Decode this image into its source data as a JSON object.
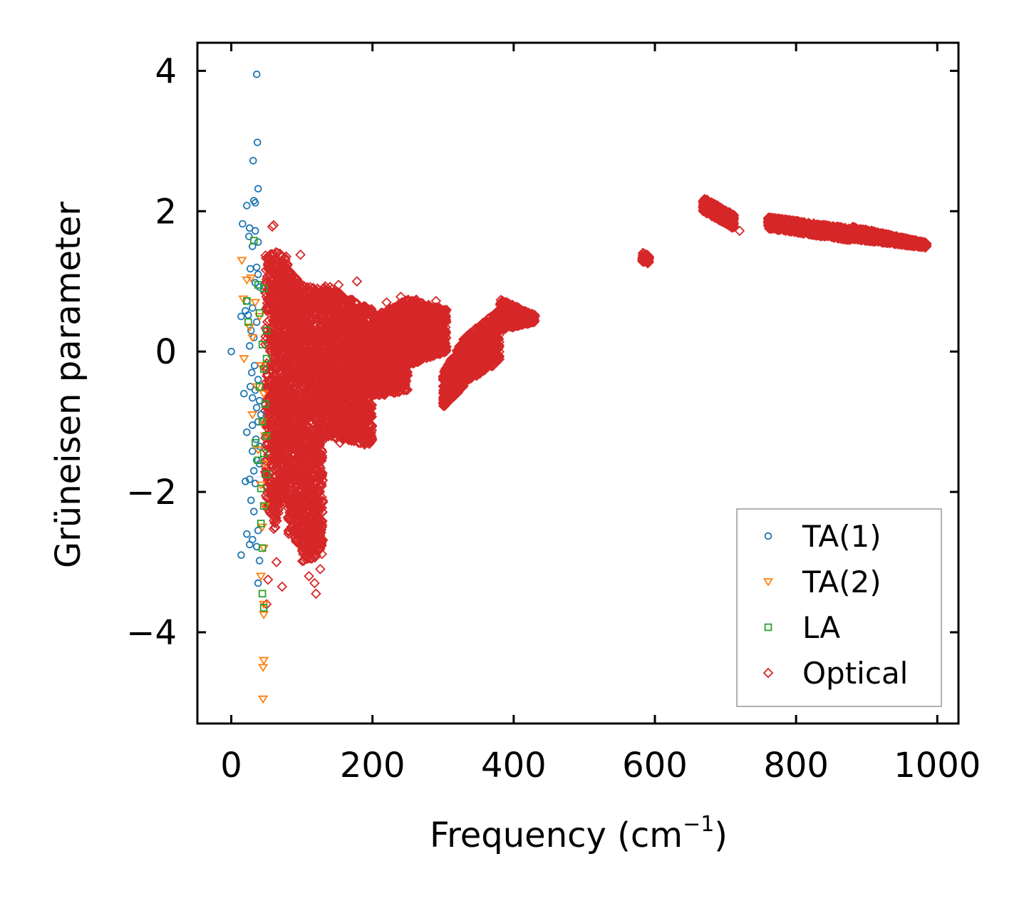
{
  "chart_data": {
    "type": "scatter",
    "title": "",
    "xlabel": "Frequency (cm",
    "xlabel_sup": "−1",
    "xlabel_suffix": ")",
    "ylabel": "Grüneisen parameter",
    "xlim": [
      -48,
      1030
    ],
    "ylim": [
      -5.3,
      4.4
    ],
    "grid": false,
    "legend_position": "lower-right",
    "x_ticks": [
      0,
      200,
      400,
      600,
      800,
      1000
    ],
    "x_tick_labels": [
      "0",
      "200",
      "400",
      "600",
      "800",
      "1000"
    ],
    "y_ticks": [
      -4,
      -2,
      0,
      2,
      4
    ],
    "y_tick_labels": [
      "−4",
      "−2",
      "0",
      "2",
      "4"
    ],
    "series": [
      {
        "name": "TA(1)",
        "color": "#1f77b4",
        "marker": "circle",
        "points": [
          [
            36,
            3.95
          ],
          [
            37,
            2.98
          ],
          [
            31,
            2.72
          ],
          [
            38,
            2.32
          ],
          [
            32,
            2.15
          ],
          [
            34,
            2.12
          ],
          [
            22,
            2.08
          ],
          [
            16,
            1.82
          ],
          [
            26,
            1.76
          ],
          [
            34,
            1.72
          ],
          [
            25,
            1.64
          ],
          [
            38,
            1.56
          ],
          [
            30,
            1.5
          ],
          [
            36,
            1.2
          ],
          [
            27,
            1.18
          ],
          [
            38,
            1.1
          ],
          [
            34,
            0.98
          ],
          [
            40,
            0.92
          ],
          [
            22,
            0.72
          ],
          [
            30,
            0.62
          ],
          [
            20,
            0.58
          ],
          [
            14,
            0.5
          ],
          [
            24,
            0.52
          ],
          [
            36,
            0.42
          ],
          [
            28,
            0.3
          ],
          [
            32,
            0.2
          ],
          [
            26,
            0.08
          ],
          [
            0,
            0.0
          ],
          [
            33,
            -0.2
          ],
          [
            29,
            -0.3
          ],
          [
            38,
            -0.4
          ],
          [
            27,
            -0.5
          ],
          [
            34,
            -0.55
          ],
          [
            18,
            -0.6
          ],
          [
            30,
            -0.66
          ],
          [
            40,
            -0.7
          ],
          [
            36,
            -0.8
          ],
          [
            42,
            -0.9
          ],
          [
            38,
            -1.0
          ],
          [
            30,
            -1.05
          ],
          [
            22,
            -1.15
          ],
          [
            35,
            -1.25
          ],
          [
            40,
            -1.35
          ],
          [
            30,
            -1.42
          ],
          [
            36,
            -1.55
          ],
          [
            40,
            -1.6
          ],
          [
            32,
            -1.7
          ],
          [
            26,
            -1.82
          ],
          [
            20,
            -1.85
          ],
          [
            34,
            -1.88
          ],
          [
            28,
            -2.12
          ],
          [
            32,
            -2.28
          ],
          [
            38,
            -2.55
          ],
          [
            22,
            -2.6
          ],
          [
            30,
            -2.68
          ],
          [
            26,
            -2.75
          ],
          [
            36,
            -2.78
          ],
          [
            14,
            -2.9
          ],
          [
            40,
            -2.98
          ],
          [
            38,
            -3.3
          ]
        ]
      },
      {
        "name": "TA(2)",
        "color": "#ff7f0e",
        "marker": "triangle-down",
        "points": [
          [
            15,
            1.3
          ],
          [
            28,
            1.05
          ],
          [
            22,
            1.02
          ],
          [
            17,
            0.75
          ],
          [
            34,
            0.7
          ],
          [
            40,
            0.5
          ],
          [
            26,
            0.35
          ],
          [
            30,
            0.2
          ],
          [
            18,
            -0.1
          ],
          [
            42,
            -0.2
          ],
          [
            36,
            -0.5
          ],
          [
            46,
            -0.6
          ],
          [
            30,
            -0.9
          ],
          [
            44,
            -1.0
          ],
          [
            48,
            -1.2
          ],
          [
            38,
            -1.4
          ],
          [
            46,
            -1.6
          ],
          [
            42,
            -1.9
          ],
          [
            48,
            -2.2
          ],
          [
            44,
            -2.5
          ],
          [
            46,
            -2.8
          ],
          [
            42,
            -3.2
          ],
          [
            46,
            -3.6
          ],
          [
            46,
            -3.75
          ],
          [
            46,
            -4.4
          ],
          [
            45,
            -4.5
          ],
          [
            45,
            -4.95
          ]
        ]
      },
      {
        "name": "LA",
        "color": "#2ca02c",
        "marker": "square",
        "points": [
          [
            32,
            1.58
          ],
          [
            38,
            0.95
          ],
          [
            46,
            0.9
          ],
          [
            22,
            0.72
          ],
          [
            40,
            0.55
          ],
          [
            24,
            0.42
          ],
          [
            50,
            0.3
          ],
          [
            44,
            0.1
          ],
          [
            50,
            -0.1
          ],
          [
            46,
            -0.25
          ],
          [
            40,
            -0.5
          ],
          [
            48,
            -0.75
          ],
          [
            44,
            -1.0
          ],
          [
            50,
            -1.2
          ],
          [
            34,
            -1.3
          ],
          [
            46,
            -1.45
          ],
          [
            38,
            -1.55
          ],
          [
            50,
            -1.75
          ],
          [
            42,
            -1.95
          ],
          [
            46,
            -2.2
          ],
          [
            42,
            -2.45
          ],
          [
            44,
            -2.8
          ],
          [
            44,
            -3.45
          ],
          [
            46,
            -3.65
          ]
        ]
      },
      {
        "name": "Optical",
        "color": "#d62728",
        "marker": "diamond",
        "clusters": [
          {
            "x": [
              48,
              60
            ],
            "y_top": [
              1.4,
              1.4
            ],
            "y_bot": [
              -2.2,
              -2.4
            ],
            "n": 260
          },
          {
            "x": [
              60,
              80
            ],
            "y_top": [
              1.45,
              1.35
            ],
            "y_bot": [
              -2.6,
              -1.8
            ],
            "n": 700
          },
          {
            "x": [
              80,
              100
            ],
            "y_top": [
              1.2,
              0.95
            ],
            "y_bot": [
              -2.6,
              -2.8
            ],
            "n": 700
          },
          {
            "x": [
              100,
              130
            ],
            "y_top": [
              0.95,
              0.88
            ],
            "y_bot": [
              -3.0,
              -2.9
            ],
            "n": 950
          },
          {
            "x": [
              130,
              200
            ],
            "y_top": [
              0.95,
              0.6
            ],
            "y_bot": [
              -1.2,
              -1.35
            ],
            "n": 1700
          },
          {
            "x": [
              200,
              250
            ],
            "y_top": [
              0.5,
              0.75
            ],
            "y_bot": [
              -0.65,
              -0.55
            ],
            "n": 1000
          },
          {
            "x": [
              250,
              305
            ],
            "y_top": [
              0.75,
              0.6
            ],
            "y_bot": [
              -0.2,
              0.0
            ],
            "n": 800
          },
          {
            "x": [
              300,
              330
            ],
            "y_top": [
              -0.3,
              0.2
            ],
            "y_bot": [
              -0.8,
              -0.5
            ],
            "n": 400
          },
          {
            "x": [
              330,
              380
            ],
            "y_top": [
              0.2,
              0.6
            ],
            "y_bot": [
              -0.45,
              -0.15
            ],
            "n": 600
          },
          {
            "x": [
              380,
              430
            ],
            "y_top": [
              0.75,
              0.52
            ],
            "y_bot": [
              0.3,
              0.42
            ],
            "n": 500
          },
          {
            "x": [
              582,
              592
            ],
            "y_top": [
              1.42,
              1.36
            ],
            "y_bot": [
              1.28,
              1.25
            ],
            "n": 90
          },
          {
            "x": [
              668,
              712
            ],
            "y_top": [
              2.2,
              1.95
            ],
            "y_bot": [
              2.0,
              1.75
            ],
            "n": 500
          },
          {
            "x": [
              760,
              880
            ],
            "y_top": [
              1.92,
              1.75
            ],
            "y_bot": [
              1.75,
              1.58
            ],
            "n": 900
          },
          {
            "x": [
              880,
              985
            ],
            "y_top": [
              1.78,
              1.55
            ],
            "y_bot": [
              1.6,
              1.48
            ],
            "n": 700
          }
        ],
        "outliers": [
          [
            60,
            1.8
          ],
          [
            58,
            1.78
          ],
          [
            98,
            1.38
          ],
          [
            72,
            1.35
          ],
          [
            178,
            1.0
          ],
          [
            152,
            0.95
          ],
          [
            140,
            0.92
          ],
          [
            118,
            0.85
          ],
          [
            220,
            0.7
          ],
          [
            240,
            0.78
          ],
          [
            262,
            0.74
          ],
          [
            290,
            0.72
          ],
          [
            335,
            0.18
          ],
          [
            345,
            -0.1
          ],
          [
            306,
            -0.35
          ],
          [
            160,
            -1.0
          ],
          [
            172,
            -0.88
          ],
          [
            185,
            -1.05
          ],
          [
            96,
            -2.2
          ],
          [
            85,
            -2.5
          ],
          [
            110,
            -3.2
          ],
          [
            118,
            -3.3
          ],
          [
            120,
            -3.45
          ],
          [
            126,
            -3.1
          ],
          [
            64,
            -3.0
          ],
          [
            72,
            -3.35
          ],
          [
            50,
            -3.6
          ],
          [
            52,
            -3.25
          ],
          [
            720,
            1.72
          ],
          [
            154,
            -1.3
          ],
          [
            144,
            -0.92
          ],
          [
            114,
            -2.95
          ]
        ]
      }
    ]
  }
}
